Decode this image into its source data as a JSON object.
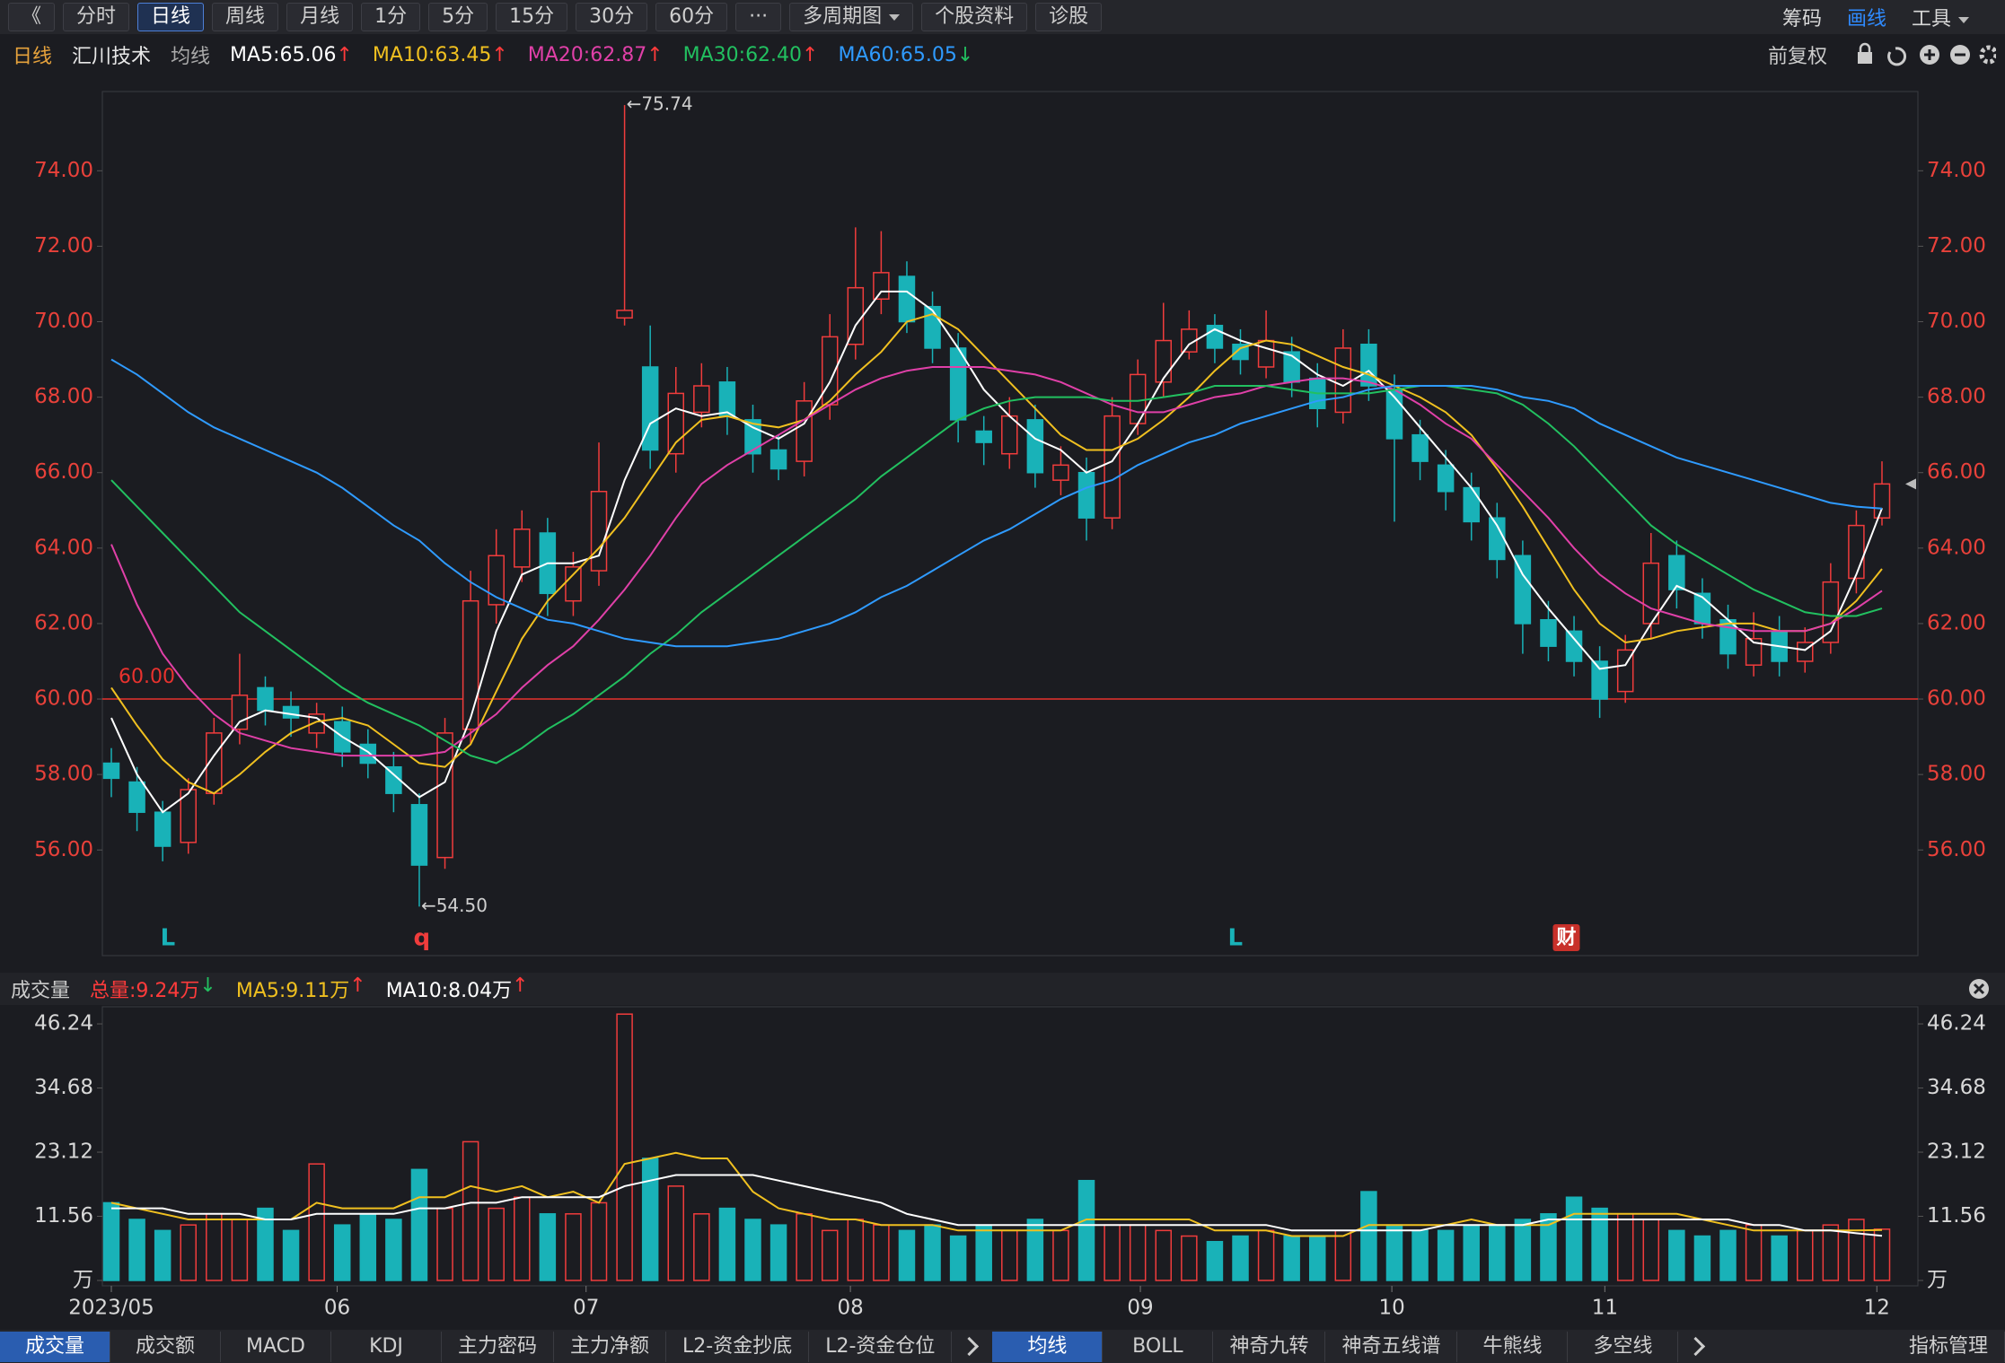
{
  "toolbar": {
    "left": [
      {
        "text": "《"
      },
      {
        "text": "分时"
      },
      {
        "text": "日线",
        "active": true
      },
      {
        "text": "周线"
      },
      {
        "text": "月线"
      },
      {
        "text": "1分"
      },
      {
        "text": "5分"
      },
      {
        "text": "15分"
      },
      {
        "text": "30分"
      },
      {
        "text": "60分"
      },
      {
        "text": "···"
      },
      {
        "text": "多周期图",
        "dropdown": true
      },
      {
        "text": "个股资料"
      },
      {
        "text": "诊股"
      }
    ],
    "right": [
      {
        "text": "筹码",
        "color": "#d8d8d8"
      },
      {
        "text": "画线",
        "color": "#2f8bff"
      },
      {
        "text": "工具",
        "color": "#d8d8d8",
        "dropdown": true
      }
    ]
  },
  "header": {
    "period": "日线",
    "stock": "汇川技术",
    "ma_label": "均线",
    "adjust": "前复权"
  },
  "volume_header": {
    "title": "成交量"
  },
  "bottom_tabs": {
    "left": [
      {
        "text": "成交量",
        "active": true
      },
      {
        "text": "成交额"
      },
      {
        "text": "MACD"
      },
      {
        "text": "KDJ"
      },
      {
        "text": "主力密码"
      },
      {
        "text": "主力净额"
      },
      {
        "text": "L2-资金抄底"
      },
      {
        "text": "L2-资金仓位"
      }
    ],
    "right": [
      {
        "text": "均线",
        "active": true
      },
      {
        "text": "BOLL"
      },
      {
        "text": "神奇九转"
      },
      {
        "text": "神奇五线谱"
      },
      {
        "text": "牛熊线"
      },
      {
        "text": "多空线"
      }
    ],
    "manage": "指标管理"
  },
  "chart_data": [
    {
      "type": "candlestick",
      "up_color": "#f03c3c",
      "down_color": "#19b2b8",
      "tick_color": "#e8413a",
      "open": [
        58.3,
        57.8,
        57.0,
        56.2,
        57.5,
        59.2,
        60.3,
        59.8,
        59.1,
        59.4,
        58.8,
        58.2,
        57.2,
        55.8,
        59.2,
        62.5,
        63.5,
        64.4,
        62.6,
        63.4,
        70.1,
        68.8,
        66.5,
        67.6,
        68.4,
        67.4,
        66.6,
        66.3,
        67.8,
        69.4,
        70.6,
        71.2,
        70.4,
        69.3,
        67.1,
        66.5,
        67.4,
        65.8,
        66.0,
        64.8,
        67.3,
        68.4,
        69.2,
        69.9,
        69.4,
        68.8,
        69.2,
        68.5,
        67.6,
        69.4,
        68.2,
        67.0,
        66.2,
        65.6,
        64.8,
        63.8,
        62.1,
        61.8,
        61.0,
        60.2,
        62.0,
        63.8,
        62.8,
        62.1,
        60.9,
        61.8,
        61.0,
        61.5,
        63.2,
        64.8
      ],
      "high": [
        58.7,
        58.2,
        57.3,
        57.9,
        59.5,
        61.2,
        60.6,
        60.2,
        59.9,
        59.8,
        59.2,
        58.6,
        57.5,
        59.5,
        63.4,
        64.5,
        65.0,
        64.8,
        63.9,
        66.8,
        75.74,
        69.9,
        68.8,
        68.9,
        68.8,
        67.8,
        67.0,
        68.4,
        70.2,
        72.5,
        72.4,
        71.6,
        70.8,
        69.7,
        67.5,
        68.0,
        67.8,
        66.7,
        66.4,
        68.0,
        69.0,
        70.5,
        70.3,
        70.2,
        69.8,
        70.3,
        69.6,
        68.9,
        69.8,
        69.8,
        68.6,
        67.4,
        66.6,
        66.0,
        65.2,
        64.2,
        62.6,
        62.2,
        61.4,
        61.7,
        64.4,
        64.2,
        63.2,
        62.5,
        62.3,
        62.2,
        61.9,
        63.6,
        65.0,
        66.3
      ],
      "low": [
        57.4,
        56.5,
        55.7,
        55.9,
        57.2,
        58.8,
        59.3,
        59.0,
        58.7,
        58.2,
        57.9,
        57.0,
        54.5,
        55.5,
        58.8,
        62.0,
        63.1,
        62.2,
        62.2,
        63.0,
        69.9,
        66.1,
        66.0,
        67.2,
        67.0,
        66.0,
        65.8,
        65.9,
        67.4,
        69.0,
        70.2,
        69.7,
        68.9,
        66.8,
        66.2,
        66.1,
        65.6,
        65.4,
        64.2,
        64.5,
        67.0,
        68.0,
        69.0,
        68.9,
        68.6,
        68.5,
        68.0,
        67.2,
        67.3,
        67.9,
        64.7,
        65.8,
        65.0,
        64.2,
        63.2,
        61.2,
        61.0,
        60.6,
        59.5,
        59.9,
        61.6,
        62.4,
        61.6,
        60.8,
        60.6,
        60.6,
        60.7,
        61.2,
        62.8,
        64.6
      ],
      "close": [
        57.9,
        57.0,
        56.1,
        57.6,
        59.1,
        60.1,
        59.7,
        59.5,
        59.6,
        58.6,
        58.3,
        57.5,
        55.6,
        59.1,
        62.6,
        63.8,
        64.5,
        62.8,
        63.5,
        65.5,
        70.3,
        66.6,
        68.1,
        68.3,
        67.5,
        66.5,
        66.1,
        67.9,
        69.6,
        70.9,
        71.3,
        70.0,
        69.3,
        67.4,
        66.8,
        67.5,
        66.0,
        66.2,
        64.8,
        67.5,
        68.6,
        69.5,
        69.8,
        69.3,
        69.0,
        69.5,
        68.4,
        67.7,
        69.3,
        68.3,
        66.9,
        66.3,
        65.5,
        64.7,
        63.7,
        62.0,
        61.4,
        61.0,
        60.0,
        61.3,
        63.6,
        62.9,
        62.0,
        61.2,
        61.6,
        61.0,
        61.5,
        63.1,
        64.6,
        65.7
      ],
      "series": [
        {
          "name": "MA5:65.06",
          "trend": "↑",
          "trend_color": "#ff3b3b",
          "color": "#ffffff",
          "values": [
            59.5,
            58.0,
            57.0,
            57.5,
            58.5,
            59.4,
            59.7,
            59.6,
            59.5,
            59.0,
            58.6,
            58.0,
            57.4,
            57.8,
            59.5,
            61.8,
            63.3,
            63.6,
            63.6,
            63.8,
            65.8,
            67.3,
            67.7,
            67.5,
            67.6,
            67.2,
            66.9,
            67.3,
            68.4,
            69.9,
            70.8,
            70.8,
            70.3,
            69.3,
            68.2,
            67.5,
            66.9,
            66.6,
            66.0,
            66.3,
            67.3,
            68.5,
            69.4,
            69.8,
            69.5,
            69.3,
            69.1,
            68.6,
            68.3,
            68.7,
            68.0,
            67.2,
            66.4,
            65.6,
            64.6,
            63.3,
            62.4,
            61.6,
            60.8,
            60.9,
            62.0,
            63.0,
            62.7,
            62.1,
            61.5,
            61.4,
            61.3,
            61.8,
            63.3,
            65.06
          ]
        },
        {
          "name": "MA10:63.45",
          "trend": "↑",
          "trend_color": "#ff3b3b",
          "color": "#f0c020",
          "values": [
            60.3,
            59.3,
            58.4,
            57.8,
            57.5,
            58.0,
            58.6,
            59.1,
            59.4,
            59.5,
            59.3,
            58.8,
            58.3,
            58.2,
            58.8,
            60.2,
            61.6,
            62.6,
            63.3,
            64.0,
            64.8,
            65.8,
            66.8,
            67.4,
            67.5,
            67.3,
            67.2,
            67.4,
            67.9,
            68.6,
            69.2,
            70.0,
            70.2,
            69.8,
            69.1,
            68.4,
            67.7,
            67.0,
            66.6,
            66.6,
            66.9,
            67.4,
            68.0,
            68.7,
            69.3,
            69.5,
            69.4,
            69.1,
            68.8,
            68.6,
            68.3,
            68.0,
            67.6,
            67.0,
            66.1,
            65.1,
            64.0,
            62.9,
            62.0,
            61.5,
            61.6,
            61.8,
            61.9,
            62.0,
            62.0,
            61.8,
            61.8,
            62.0,
            62.6,
            63.45
          ]
        },
        {
          "name": "MA20:62.87",
          "trend": "↑",
          "trend_color": "#ff3b3b",
          "color": "#e040a8",
          "values": [
            64.1,
            62.5,
            61.2,
            60.3,
            59.6,
            59.1,
            58.9,
            58.7,
            58.6,
            58.5,
            58.5,
            58.5,
            58.5,
            58.6,
            59.1,
            59.6,
            60.3,
            60.9,
            61.4,
            62.1,
            62.9,
            63.8,
            64.8,
            65.7,
            66.2,
            66.6,
            67.0,
            67.4,
            67.8,
            68.2,
            68.5,
            68.7,
            68.8,
            68.8,
            68.8,
            68.7,
            68.6,
            68.4,
            68.1,
            67.8,
            67.6,
            67.6,
            67.8,
            68.0,
            68.1,
            68.3,
            68.4,
            68.5,
            68.5,
            68.4,
            68.2,
            67.8,
            67.3,
            66.9,
            66.2,
            65.5,
            64.8,
            64.0,
            63.3,
            62.8,
            62.4,
            62.2,
            62.0,
            61.9,
            61.8,
            61.8,
            61.8,
            62.0,
            62.4,
            62.87
          ]
        },
        {
          "name": "MA30:62.40",
          "trend": "↑",
          "trend_color": "#ff3b3b",
          "color": "#22c060",
          "values": [
            65.8,
            65.1,
            64.4,
            63.7,
            63.0,
            62.3,
            61.8,
            61.3,
            60.8,
            60.3,
            59.9,
            59.6,
            59.3,
            58.9,
            58.5,
            58.3,
            58.7,
            59.2,
            59.6,
            60.1,
            60.6,
            61.2,
            61.7,
            62.3,
            62.8,
            63.3,
            63.8,
            64.3,
            64.8,
            65.3,
            65.9,
            66.4,
            66.9,
            67.4,
            67.7,
            67.9,
            68.0,
            68.0,
            68.0,
            67.9,
            67.9,
            68.0,
            68.1,
            68.3,
            68.3,
            68.3,
            68.2,
            68.1,
            68.1,
            68.1,
            68.2,
            68.3,
            68.3,
            68.2,
            68.1,
            67.8,
            67.3,
            66.7,
            66.0,
            65.3,
            64.6,
            64.1,
            63.7,
            63.3,
            62.9,
            62.6,
            62.3,
            62.2,
            62.2,
            62.4
          ]
        },
        {
          "name": "MA60:65.05",
          "trend": "↓",
          "trend_color": "#22c060",
          "color": "#2f9bff",
          "values": [
            69.0,
            68.6,
            68.1,
            67.6,
            67.2,
            66.9,
            66.6,
            66.3,
            66.0,
            65.6,
            65.1,
            64.6,
            64.2,
            63.6,
            63.1,
            62.7,
            62.4,
            62.1,
            62.0,
            61.8,
            61.6,
            61.5,
            61.4,
            61.4,
            61.4,
            61.5,
            61.6,
            61.8,
            62.0,
            62.3,
            62.7,
            63.0,
            63.4,
            63.8,
            64.2,
            64.5,
            64.9,
            65.3,
            65.6,
            65.8,
            66.2,
            66.5,
            66.8,
            67.0,
            67.3,
            67.5,
            67.7,
            67.9,
            68.0,
            68.2,
            68.3,
            68.3,
            68.3,
            68.3,
            68.2,
            68.0,
            67.9,
            67.7,
            67.3,
            67.0,
            66.7,
            66.4,
            66.2,
            66.0,
            65.8,
            65.6,
            65.4,
            65.2,
            65.1,
            65.05
          ]
        }
      ],
      "xlim": [
        -0.35,
        70.4
      ],
      "ylim": [
        53.2,
        76.1
      ],
      "yticks": [
        {
          "value": 56,
          "label": "56.00"
        },
        {
          "value": 58,
          "label": "58.00"
        },
        {
          "value": 60,
          "label": "60.00"
        },
        {
          "value": 62,
          "label": "62.00"
        },
        {
          "value": 64,
          "label": "64.00"
        },
        {
          "value": 66,
          "label": "66.00"
        },
        {
          "value": 68,
          "label": "68.00"
        },
        {
          "value": 70,
          "label": "70.00"
        },
        {
          "value": 72,
          "label": "72.00"
        },
        {
          "value": 74,
          "label": "74.00"
        }
      ],
      "reference": {
        "value": 60,
        "label": "60.00",
        "color": "#e8322e"
      },
      "annotations": [
        {
          "text": "←75.74",
          "x": 20,
          "y": 75.74
        },
        {
          "text": "←54.50",
          "x": 12,
          "y": 54.5
        }
      ],
      "markers": [
        {
          "text": "L",
          "x": 2.2,
          "color": "#19b2b8"
        },
        {
          "text": "q",
          "x": 12.1,
          "color": "#f03c3c"
        },
        {
          "text": "L",
          "x": 43.8,
          "color": "#19b2b8"
        },
        {
          "text": "财",
          "x": 56.7,
          "color": "#c8302a",
          "boxed": true
        }
      ]
    },
    {
      "type": "bar",
      "tick_color": "#d8d8d8",
      "total": {
        "label": "总量:9.24万",
        "trend": "↓",
        "color": "#ff3b3b",
        "trend_color": "#22c060"
      },
      "values": [
        14,
        11,
        9,
        10,
        12,
        11,
        13,
        9,
        21,
        10,
        12,
        11,
        20,
        13,
        25,
        13,
        15,
        12,
        12,
        14,
        48,
        22,
        17,
        12,
        13,
        11,
        10,
        12,
        9,
        11,
        10,
        9,
        10,
        8,
        10,
        9,
        11,
        9,
        18,
        10,
        10,
        9,
        8,
        7,
        8,
        9,
        8,
        8,
        9,
        16,
        10,
        9,
        9,
        10,
        10,
        11,
        12,
        15,
        13,
        12,
        11,
        9,
        8,
        9,
        10,
        8,
        9,
        10,
        11,
        9.24
      ],
      "series": [
        {
          "name": "MA5:9.11万",
          "trend": "↑",
          "trend_color": "#ff3b3b",
          "color": "#f0c020",
          "values": [
            14,
            13,
            12,
            11,
            11,
            11,
            11,
            11,
            14,
            13,
            13,
            13,
            15,
            15,
            17,
            16,
            17,
            15,
            16,
            14,
            21,
            22,
            23,
            22,
            22,
            16,
            13,
            12,
            11,
            11,
            10,
            10,
            10,
            9,
            9,
            9,
            9,
            9,
            11,
            11,
            11,
            11,
            11,
            9,
            9,
            9,
            8,
            8,
            8,
            10,
            10,
            10,
            10,
            11,
            10,
            10,
            10,
            12,
            12,
            12,
            12,
            12,
            11,
            10,
            9,
            9,
            9,
            9,
            9,
            9.11
          ]
        },
        {
          "name": "MA10:8.04万",
          "trend": "↑",
          "trend_color": "#ff3b3b",
          "color": "#ffffff",
          "values": [
            13,
            13,
            13,
            12,
            12,
            12,
            11,
            11,
            12,
            12,
            12,
            12,
            13,
            13,
            14,
            14,
            15,
            15,
            15,
            15,
            17,
            18,
            19,
            19,
            19,
            19,
            18,
            17,
            16,
            15,
            14,
            12,
            11,
            10,
            10,
            10,
            10,
            10,
            10,
            10,
            10,
            10,
            10,
            10,
            10,
            10,
            9,
            9,
            9,
            9,
            9,
            9,
            10,
            10,
            10,
            10,
            11,
            11,
            11,
            11,
            11,
            11,
            11,
            11,
            10,
            10,
            9,
            9,
            8.5,
            8.04
          ]
        }
      ],
      "xlim": [
        -0.35,
        70.4
      ],
      "ylim": [
        0,
        49
      ],
      "yticks": [
        {
          "value": 0,
          "label": "万"
        },
        {
          "value": 11.56,
          "label": "11.56"
        },
        {
          "value": 23.12,
          "label": "23.12"
        },
        {
          "value": 34.68,
          "label": "34.68"
        },
        {
          "value": 46.24,
          "label": "46.24"
        }
      ],
      "xticks": [
        {
          "value": 0,
          "label": "2023/05"
        },
        {
          "value": 8.8,
          "label": "06"
        },
        {
          "value": 18.5,
          "label": "07"
        },
        {
          "value": 28.8,
          "label": "08"
        },
        {
          "value": 40.1,
          "label": "09"
        },
        {
          "value": 49.9,
          "label": "10"
        },
        {
          "value": 58.2,
          "label": "11"
        },
        {
          "value": 68.8,
          "label": "12"
        }
      ]
    }
  ]
}
